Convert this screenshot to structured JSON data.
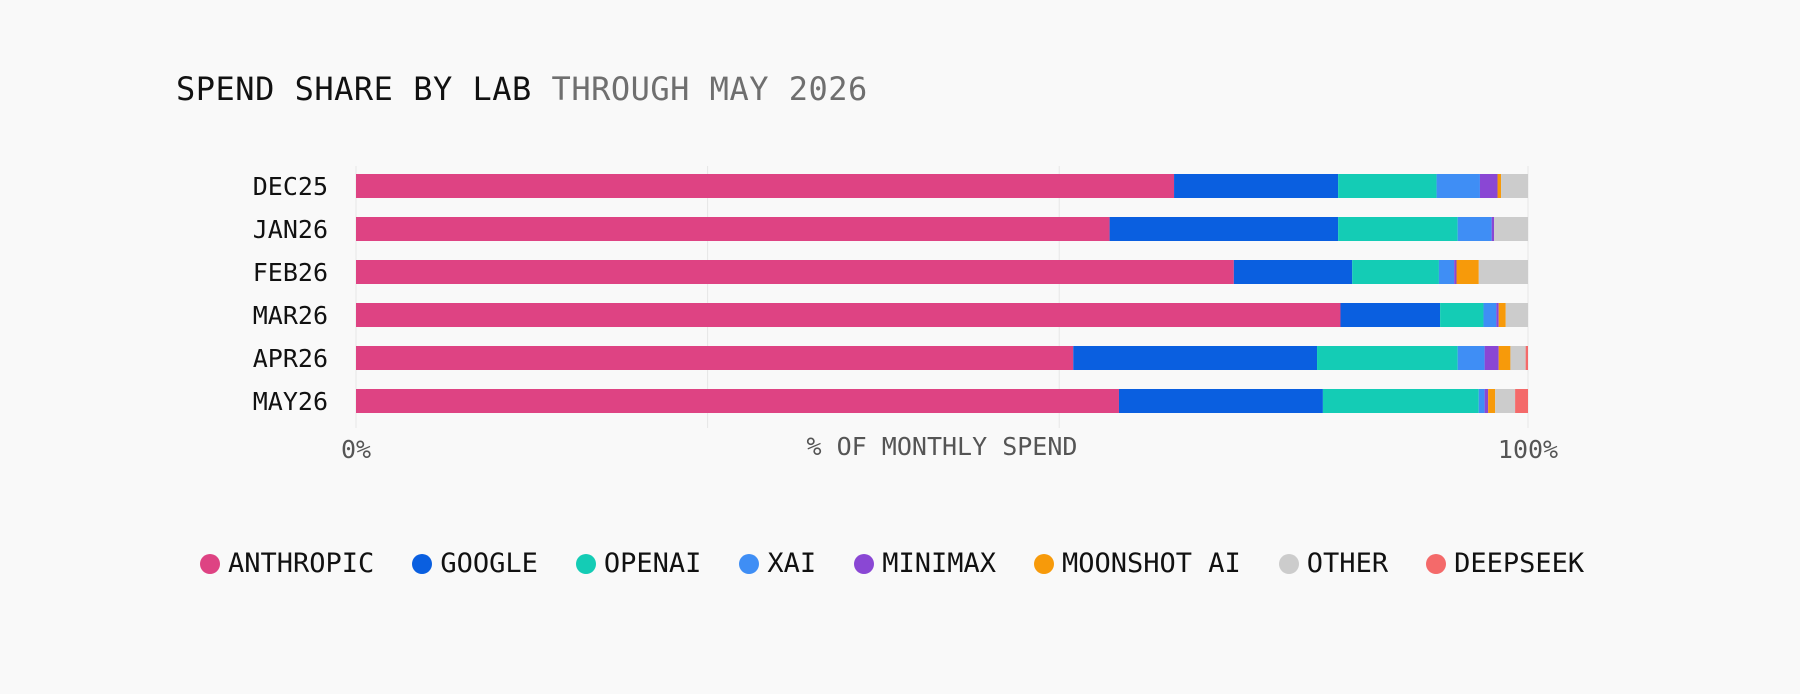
{
  "title": {
    "main": "SPEND SHARE BY LAB",
    "sub": "THROUGH MAY 2026"
  },
  "chart_data": {
    "type": "bar",
    "orientation": "horizontal",
    "stacked": true,
    "title": "SPEND SHARE BY LAB THROUGH MAY 2026",
    "xlabel": "% OF MONTHLY SPEND",
    "ylabel": "",
    "xlim": [
      0,
      100
    ],
    "x_tick_labels": [
      "0%",
      "100%"
    ],
    "grid": true,
    "legend_position": "bottom",
    "categories": [
      "DEC25",
      "JAN26",
      "FEB26",
      "MAR26",
      "APR26",
      "MAY26"
    ],
    "series": [
      {
        "name": "ANTHROPIC",
        "color": "#de4383",
        "values": [
          69.8,
          64.3,
          74.9,
          84.0,
          61.2,
          65.1
        ]
      },
      {
        "name": "GOOGLE",
        "color": "#0a5fe0",
        "values": [
          14.0,
          19.5,
          10.1,
          8.5,
          20.8,
          17.4
        ]
      },
      {
        "name": "OPENAI",
        "color": "#14ccb5",
        "values": [
          8.4,
          10.2,
          7.4,
          3.7,
          12.0,
          13.3
        ]
      },
      {
        "name": "XAI",
        "color": "#3f8ef5",
        "values": [
          3.7,
          2.9,
          1.3,
          1.1,
          2.3,
          0.5
        ]
      },
      {
        "name": "MINIMAX",
        "color": "#8a47d4",
        "values": [
          1.5,
          0.2,
          0.2,
          0.2,
          1.2,
          0.3
        ]
      },
      {
        "name": "MOONSHOT AI",
        "color": "#f79a0a",
        "values": [
          0.3,
          0.0,
          1.9,
          0.6,
          1.0,
          0.6
        ]
      },
      {
        "name": "OTHER",
        "color": "#cccccc",
        "values": [
          2.3,
          2.9,
          4.2,
          1.9,
          1.3,
          1.7
        ]
      },
      {
        "name": "DEEPSEEK",
        "color": "#f46a6a",
        "values": [
          0.0,
          0.0,
          0.0,
          0.0,
          0.2,
          1.1
        ]
      }
    ]
  }
}
